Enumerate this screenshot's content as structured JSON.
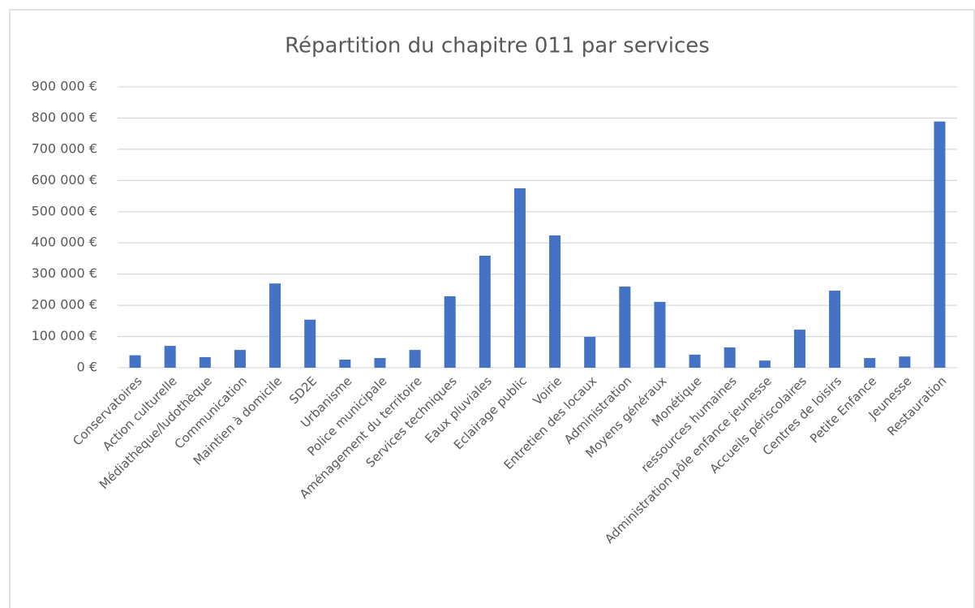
{
  "chart_data": {
    "type": "bar",
    "title": "Répartition du chapitre 011 par services",
    "categories": [
      "Conservatoires",
      "Action culturelle",
      "Médiathèque/ludothèque",
      "Communication",
      "Maintien à domicile",
      "SD2E",
      "Urbanisme",
      "Police municipale",
      "Aménagement du territoire",
      "Services techniques",
      "Eaux pluviales",
      "Eclairage public",
      "Voirie",
      "Entretien des locaux",
      "Administration",
      "Moyens généraux",
      "Monétique",
      "ressources humaines",
      "Administration pôle enfance jeunesse",
      "Accueils périscolaires",
      "Centres de loisirs",
      "Petite Enfance",
      "Jeunesse",
      "Restauration"
    ],
    "values": [
      40000,
      70000,
      34000,
      57000,
      270000,
      154000,
      26000,
      31000,
      57000,
      229000,
      359000,
      575000,
      424000,
      99000,
      260000,
      211000,
      42000,
      65000,
      23000,
      122000,
      247000,
      31000,
      36000,
      789000
    ],
    "color": "#4472c4",
    "ylim": [
      0,
      900000
    ],
    "yticks": [
      {
        "value": 0,
        "label": "0 €"
      },
      {
        "value": 100000,
        "label": "100 000 €"
      },
      {
        "value": 200000,
        "label": "200 000 €"
      },
      {
        "value": 300000,
        "label": "300 000 €"
      },
      {
        "value": 400000,
        "label": "400 000 €"
      },
      {
        "value": 500000,
        "label": "500 000 €"
      },
      {
        "value": 600000,
        "label": "600 000 €"
      },
      {
        "value": 700000,
        "label": "700 000 €"
      },
      {
        "value": 800000,
        "label": "800 000 €"
      },
      {
        "value": 900000,
        "label": "900 000 €"
      }
    ],
    "grid": true
  }
}
